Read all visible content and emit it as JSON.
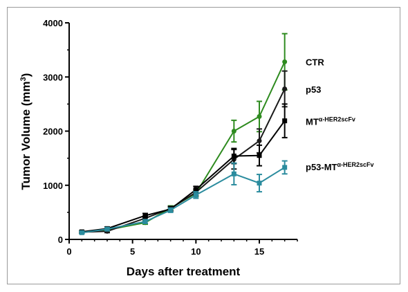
{
  "chart_data": {
    "type": "line",
    "title": "",
    "xlabel": "Days after treatment",
    "ylabel_main": "Tumor Volume (mm",
    "ylabel_sup": "3",
    "ylabel_end": ")",
    "xlim": [
      0,
      18
    ],
    "ylim": [
      0,
      4000
    ],
    "xticks": [
      0,
      5,
      10,
      15
    ],
    "xtick_labels": [
      "0",
      "5",
      "10",
      "15"
    ],
    "yticks": [
      0,
      1000,
      2000,
      3000,
      4000
    ],
    "ytick_labels": [
      "0",
      "1000",
      "2000",
      "3000",
      "4000"
    ],
    "grid": false,
    "legend": "inline labels at right end of each line",
    "series": [
      {
        "name": "CTR",
        "name_sup": "",
        "color": "#2e8b1f",
        "marker": "circle",
        "x": [
          1,
          3,
          6,
          8,
          10,
          13,
          15,
          17
        ],
        "y": [
          130,
          175,
          310,
          580,
          850,
          2000,
          2270,
          3280
        ],
        "err": [
          20,
          25,
          30,
          40,
          60,
          200,
          280,
          520
        ]
      },
      {
        "name": "p53",
        "name_sup": "",
        "color": "#1a1a1a",
        "marker": "circle",
        "x": [
          1,
          3,
          6,
          8,
          10,
          13,
          15,
          17
        ],
        "y": [
          135,
          150,
          390,
          570,
          870,
          1480,
          1820,
          2780
        ],
        "err": [
          20,
          25,
          40,
          40,
          60,
          180,
          220,
          330
        ]
      },
      {
        "name": "MT",
        "name_sup": "α-HER2scFv",
        "color": "#000000",
        "marker": "square",
        "x": [
          1,
          3,
          6,
          8,
          10,
          13,
          15,
          17
        ],
        "y": [
          140,
          200,
          440,
          560,
          920,
          1540,
          1550,
          2190
        ],
        "err": [
          20,
          30,
          40,
          40,
          60,
          140,
          190,
          310
        ]
      },
      {
        "name": "p53-MT",
        "name_sup": "α-HER2scFv",
        "color": "#2b8c9e",
        "marker": "square",
        "x": [
          1,
          3,
          6,
          8,
          10,
          13,
          15,
          17
        ],
        "y": [
          125,
          190,
          330,
          540,
          820,
          1210,
          1040,
          1330
        ],
        "err": [
          20,
          25,
          35,
          40,
          60,
          200,
          160,
          120
        ]
      }
    ]
  }
}
